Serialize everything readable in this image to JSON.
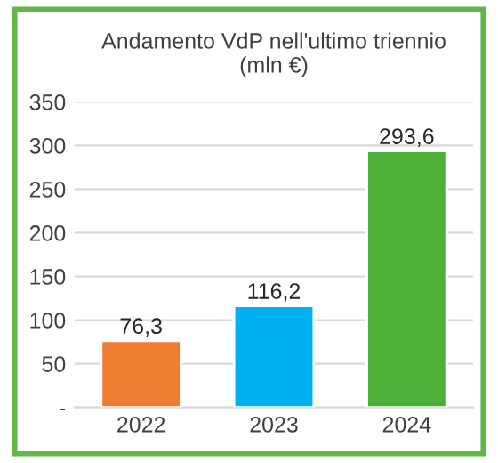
{
  "chart_data": {
    "type": "bar",
    "title": "Andamento VdP nell'ultimo triennio\n(mln €)",
    "categories": [
      "2022",
      "2023",
      "2024"
    ],
    "values": [
      76.3,
      116.2,
      293.6
    ],
    "colors": [
      "#ed7d31",
      "#00b0f0",
      "#4caf37"
    ],
    "value_labels": [
      "76,3",
      "116,2",
      "293,6"
    ],
    "ylim": [
      0,
      350
    ],
    "yticks": [
      {
        "value": 0,
        "label": "-"
      },
      50,
      100,
      150,
      200,
      250,
      300,
      350
    ],
    "grid": "y"
  }
}
